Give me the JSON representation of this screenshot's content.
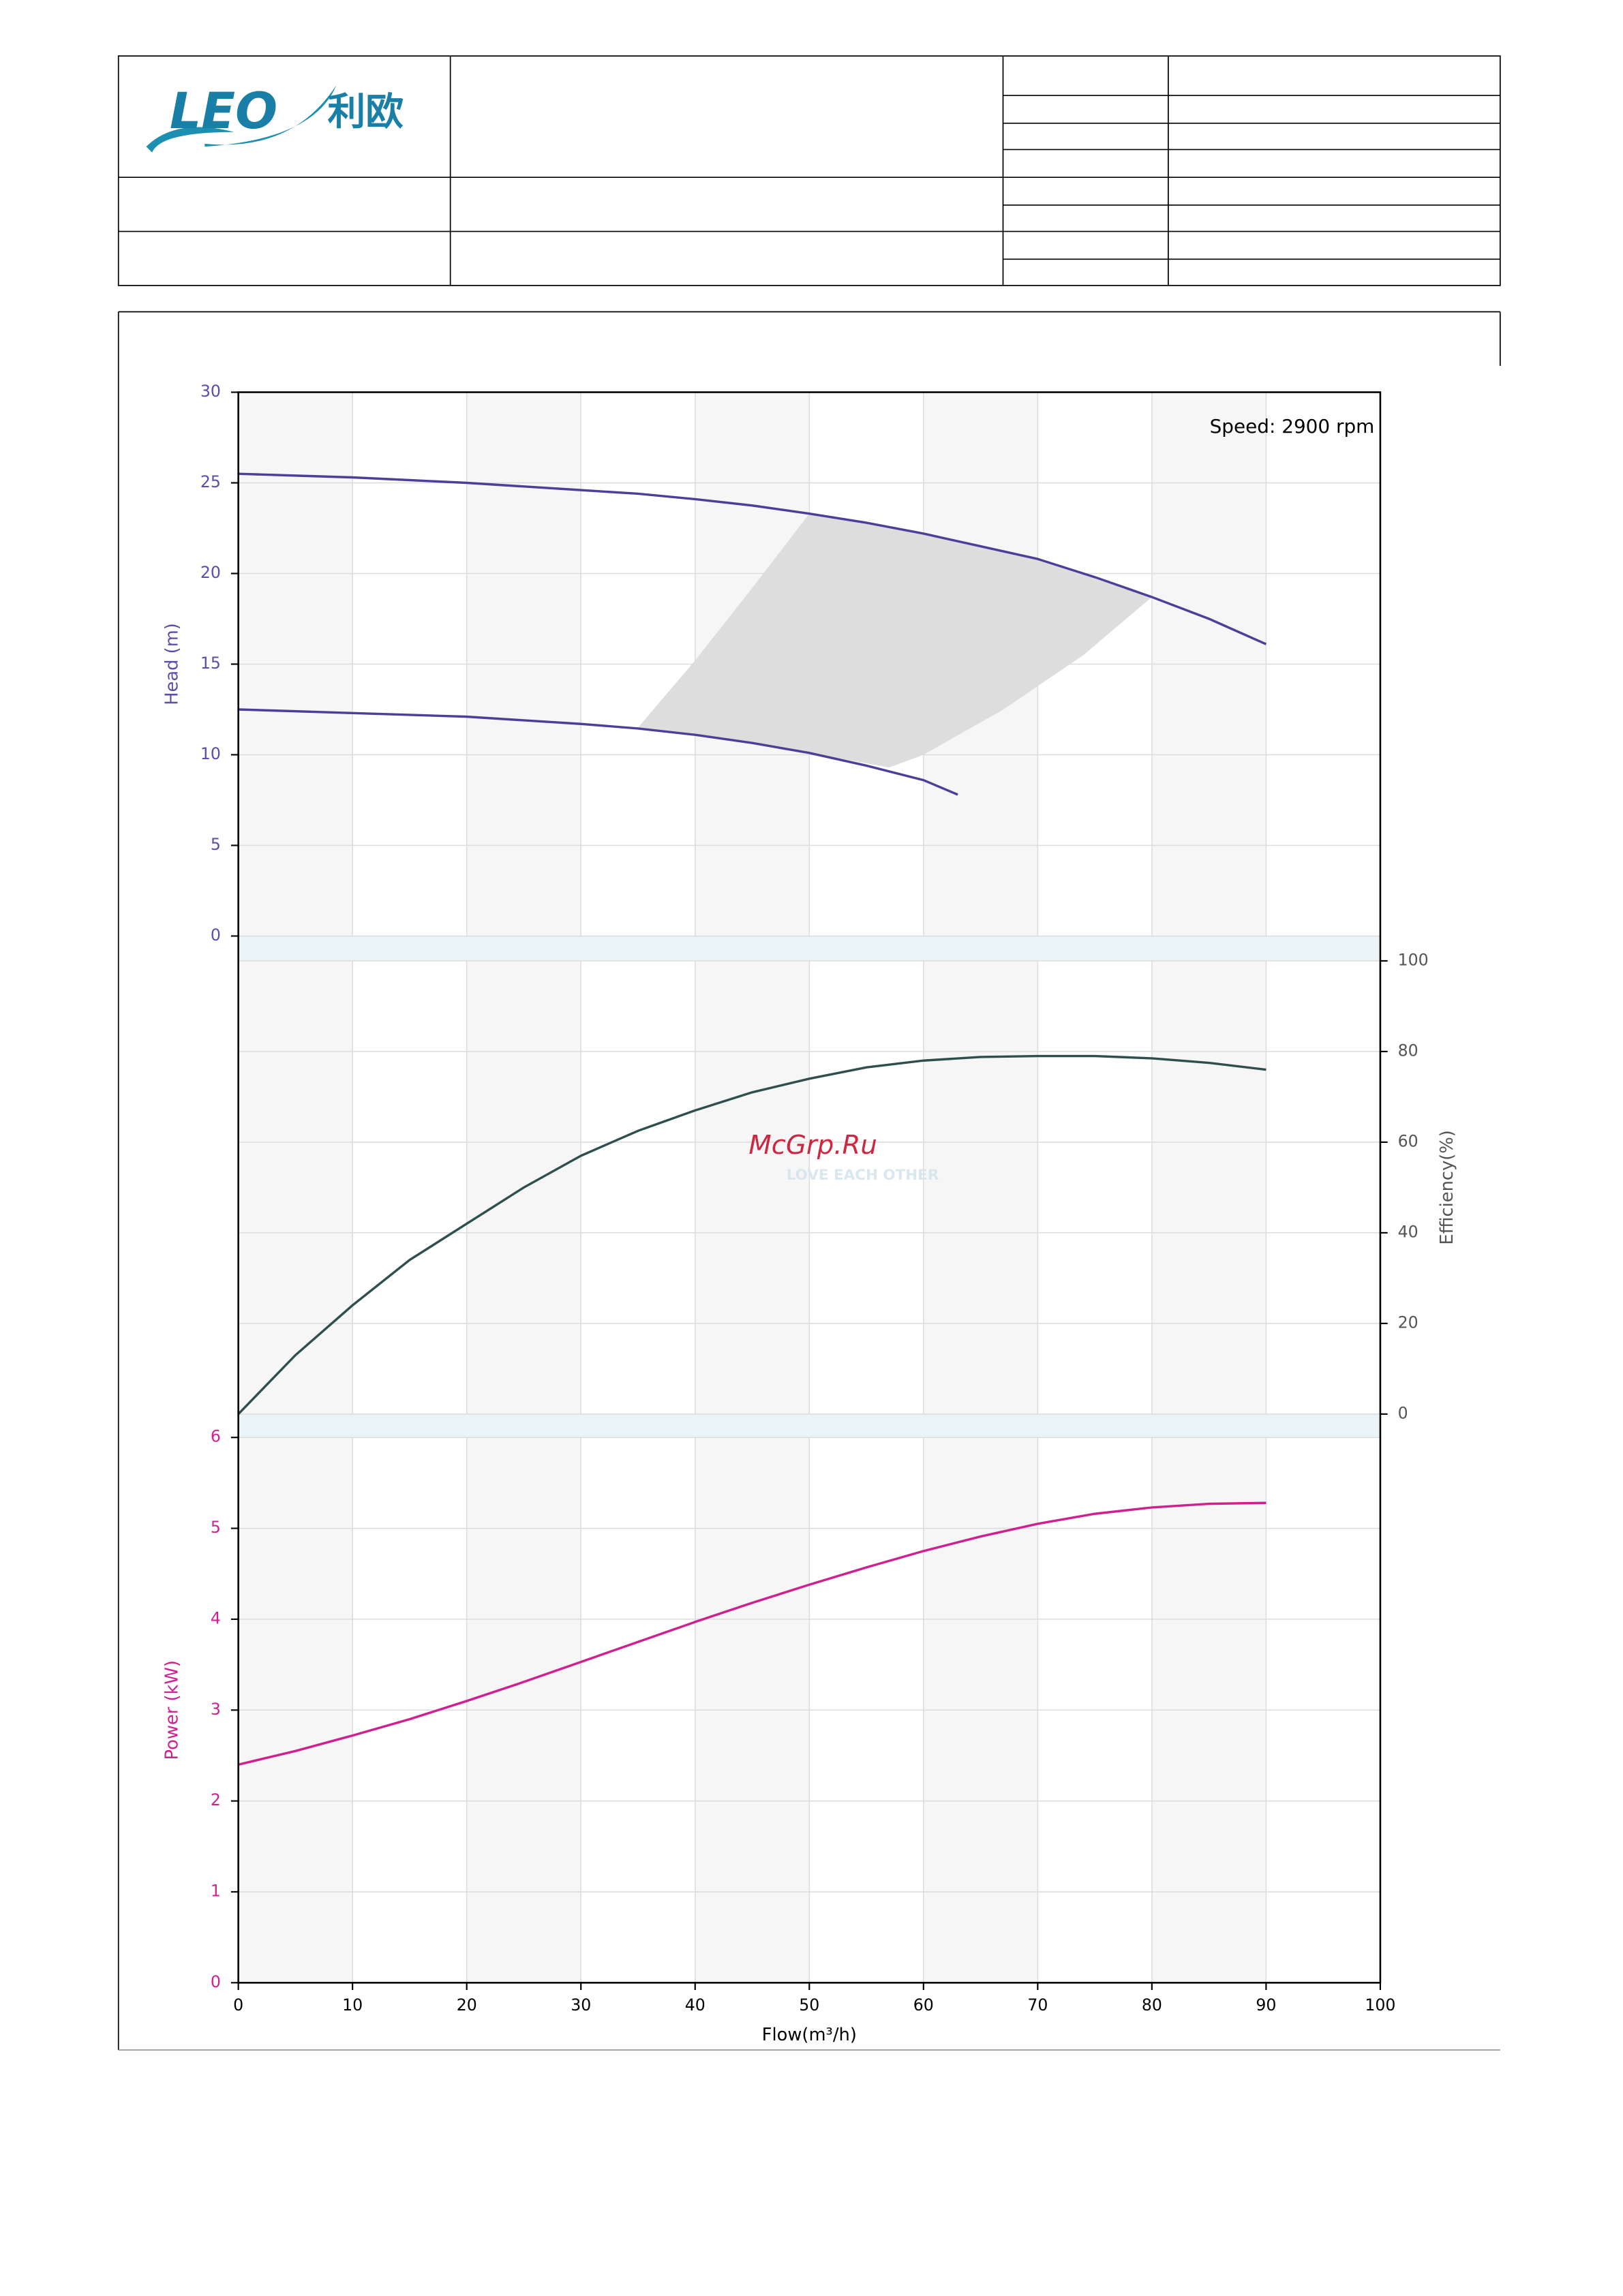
{
  "header": {
    "logo_text": "LEO",
    "logo_cn": "利欧"
  },
  "watermark": {
    "text": "McGrp.Ru",
    "sub": "LOVE EACH OTHER"
  },
  "chart_data": [
    {
      "type": "line",
      "annotation": "Speed: 2900 rpm",
      "y_label": "Head (m)",
      "axis_side": "left",
      "axis_color": "#5a4fa8",
      "xlim": [
        0,
        100
      ],
      "ylim": [
        0,
        30
      ],
      "yticks": [
        0,
        5,
        10,
        15,
        20,
        25,
        30
      ],
      "grid": true,
      "series": [
        {
          "color": "#4b3f99",
          "x": [
            0,
            5,
            10,
            15,
            20,
            25,
            30,
            35,
            40,
            45,
            50,
            55,
            60,
            65,
            70,
            75,
            80,
            85,
            90
          ],
          "values": [
            25.5,
            25.4,
            25.3,
            25.15,
            25.0,
            24.8,
            24.6,
            24.4,
            24.1,
            23.75,
            23.3,
            22.8,
            22.2,
            21.5,
            20.8,
            19.8,
            18.7,
            17.5,
            16.1
          ]
        },
        {
          "color": "#4b3f99",
          "x": [
            0,
            5,
            10,
            15,
            20,
            25,
            30,
            35,
            40,
            45,
            50,
            55,
            60,
            63
          ],
          "values": [
            12.5,
            12.4,
            12.3,
            12.2,
            12.1,
            11.9,
            11.7,
            11.45,
            11.1,
            10.65,
            10.1,
            9.4,
            8.6,
            7.8
          ]
        }
      ],
      "operating_range": {
        "color": "#dddddd",
        "x": [
          35,
          40,
          45,
          50,
          55,
          60,
          65,
          70,
          75,
          80,
          74,
          67,
          60,
          57,
          50,
          45,
          40,
          35
        ],
        "y": [
          11.5,
          15.2,
          19.2,
          23.3,
          22.8,
          22.2,
          21.5,
          20.8,
          19.8,
          18.7,
          15.5,
          12.5,
          10.0,
          9.3,
          10.1,
          10.65,
          11.1,
          11.5
        ]
      }
    },
    {
      "type": "line",
      "y_label": "Efficiency(%)",
      "axis_side": "right",
      "axis_color": "#555555",
      "xlim": [
        0,
        100
      ],
      "ylim": [
        0,
        100
      ],
      "yticks": [
        0,
        20,
        40,
        60,
        80,
        100
      ],
      "grid": true,
      "series": [
        {
          "color": "#2f4f4f",
          "x": [
            0,
            5,
            10,
            15,
            20,
            25,
            30,
            35,
            40,
            45,
            50,
            55,
            60,
            65,
            70,
            75,
            80,
            85,
            90
          ],
          "values": [
            0,
            13,
            24,
            34,
            42,
            50,
            57,
            62.5,
            67,
            71,
            74,
            76.5,
            78,
            78.8,
            79,
            79,
            78.5,
            77.5,
            76
          ]
        }
      ]
    },
    {
      "type": "line",
      "y_label": "Power (kW)",
      "x_label": "Flow(m³/h)",
      "axis_side": "left",
      "axis_color": "#d02090",
      "xlim": [
        0,
        100
      ],
      "xticks": [
        0,
        10,
        20,
        30,
        40,
        50,
        60,
        70,
        80,
        90,
        100
      ],
      "ylim": [
        0,
        6
      ],
      "yticks": [
        0,
        1,
        2,
        3,
        4,
        5,
        6
      ],
      "grid": true,
      "series": [
        {
          "color": "#d0208f",
          "x": [
            0,
            5,
            10,
            15,
            20,
            25,
            30,
            35,
            40,
            45,
            50,
            55,
            60,
            65,
            70,
            75,
            80,
            85,
            90
          ],
          "values": [
            2.4,
            2.55,
            2.72,
            2.9,
            3.1,
            3.31,
            3.53,
            3.75,
            3.97,
            4.18,
            4.38,
            4.57,
            4.75,
            4.91,
            5.05,
            5.16,
            5.23,
            5.27,
            5.28
          ]
        }
      ]
    }
  ]
}
